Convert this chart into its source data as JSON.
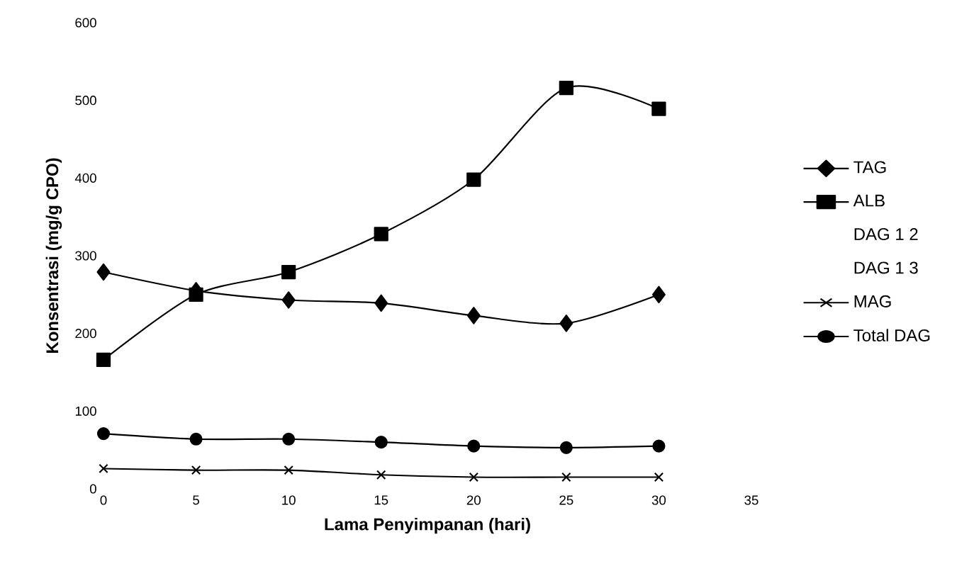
{
  "chart_data": {
    "type": "line",
    "xlabel": "Lama Penyimpanan (hari)",
    "ylabel": "Konsentrasi (mg/g CPO)",
    "x": [
      0,
      5,
      10,
      15,
      20,
      25,
      30
    ],
    "xlim": [
      0,
      35
    ],
    "xticks": [
      0,
      5,
      10,
      15,
      20,
      25,
      30,
      35
    ],
    "ylim": [
      0,
      600
    ],
    "yticks": [
      0,
      100,
      200,
      300,
      400,
      500,
      600
    ],
    "grid": false,
    "legend": "right",
    "line_style": "solid",
    "series": [
      {
        "name": "TAG",
        "color": "#000000",
        "marker": "diamond",
        "values": [
          279,
          255,
          243,
          239,
          223,
          213,
          250
        ]
      },
      {
        "name": "ALB",
        "color": "#000000",
        "marker": "square",
        "values": [
          166,
          250,
          279,
          328,
          398,
          516,
          489
        ]
      },
      {
        "name": "DAG 1 2",
        "values": [
          null,
          null,
          null,
          null,
          null,
          null,
          null
        ]
      },
      {
        "name": "DAG 1 3",
        "values": [
          null,
          null,
          null,
          null,
          null,
          null,
          null
        ]
      },
      {
        "name": "MAG",
        "color": "#000000",
        "marker": "cross",
        "values": [
          26,
          24,
          24,
          18,
          15,
          15,
          15
        ]
      },
      {
        "name": "Total DAG",
        "color": "#000000",
        "marker": "circle",
        "values": [
          71,
          64,
          64,
          60,
          55,
          53,
          55
        ]
      }
    ]
  }
}
